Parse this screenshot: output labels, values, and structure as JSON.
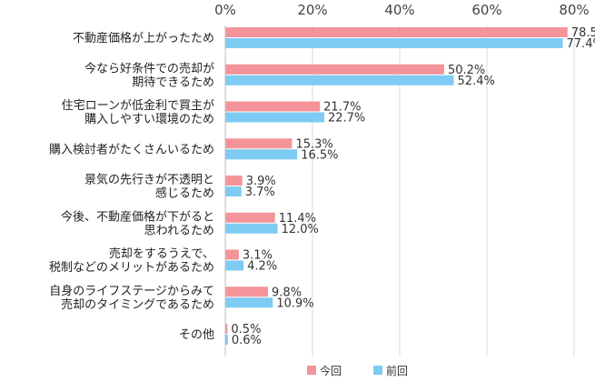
{
  "chart_data": {
    "type": "bar",
    "orientation": "horizontal",
    "title": "",
    "xlabel": "",
    "ylabel": "",
    "xlim": [
      0,
      80
    ],
    "x_ticks": [
      "0%",
      "20%",
      "40%",
      "60%",
      "80%"
    ],
    "grid": true,
    "legend_position": "bottom",
    "value_suffix": "%",
    "categories": [
      [
        "不動産価格が上がったため"
      ],
      [
        "今なら好条件での売却が",
        "期待できるため"
      ],
      [
        "住宅ローンが低金利で買主が",
        "購入しやすい環境のため"
      ],
      [
        "購入検討者がたくさんいるため"
      ],
      [
        "景気の先行きが不透明と",
        "感じるため"
      ],
      [
        "今後、不動産価格が下がると",
        "思われるため"
      ],
      [
        "売却をするうえで、",
        "税制などのメリットがあるため"
      ],
      [
        "自身のライフステージからみて",
        "売却のタイミングであるため"
      ],
      [
        "その他"
      ]
    ],
    "series": [
      {
        "name": "今回",
        "color": "#f4949a",
        "values": [
          78.5,
          50.2,
          21.7,
          15.3,
          3.9,
          11.4,
          3.1,
          9.8,
          0.5
        ]
      },
      {
        "name": "前回",
        "color": "#7ecbf3",
        "values": [
          77.4,
          52.4,
          22.7,
          16.5,
          3.7,
          12.0,
          4.2,
          10.9,
          0.6
        ]
      }
    ],
    "gridline_color": "#d9d9d9"
  }
}
